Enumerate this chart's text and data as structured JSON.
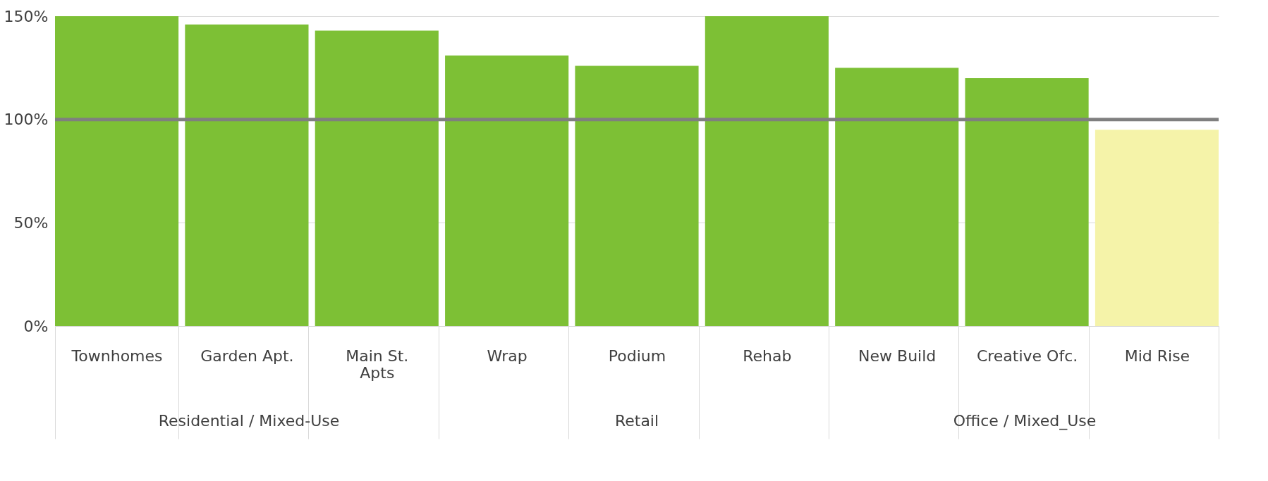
{
  "chart_data": {
    "type": "bar",
    "categories": [
      "Townhomes",
      "Garden Apt.",
      "Main St.\nApts",
      "Wrap",
      "Podium",
      "Rehab",
      "New Build",
      "Creative Ofc.",
      "Mid Rise"
    ],
    "values": [
      150,
      146,
      143,
      131,
      126,
      150,
      125,
      120,
      95
    ],
    "colors": [
      "#7dc035",
      "#7dc035",
      "#7dc035",
      "#7dc035",
      "#7dc035",
      "#7dc035",
      "#7dc035",
      "#7dc035",
      "#f5f3a9"
    ],
    "ylim": [
      0,
      150
    ],
    "yticks": [
      {
        "value": 0,
        "label": "0%"
      },
      {
        "value": 50,
        "label": "50%"
      },
      {
        "value": 100,
        "label": "100%"
      },
      {
        "value": 150,
        "label": "150%"
      }
    ],
    "grid": "y",
    "ref_lines": [
      {
        "axis": "y",
        "value": 100,
        "color": "#7f7f7f"
      }
    ],
    "annotations": [
      "Residential / Mixed-Use",
      "Retail",
      "Office / Mixed_Use"
    ]
  }
}
